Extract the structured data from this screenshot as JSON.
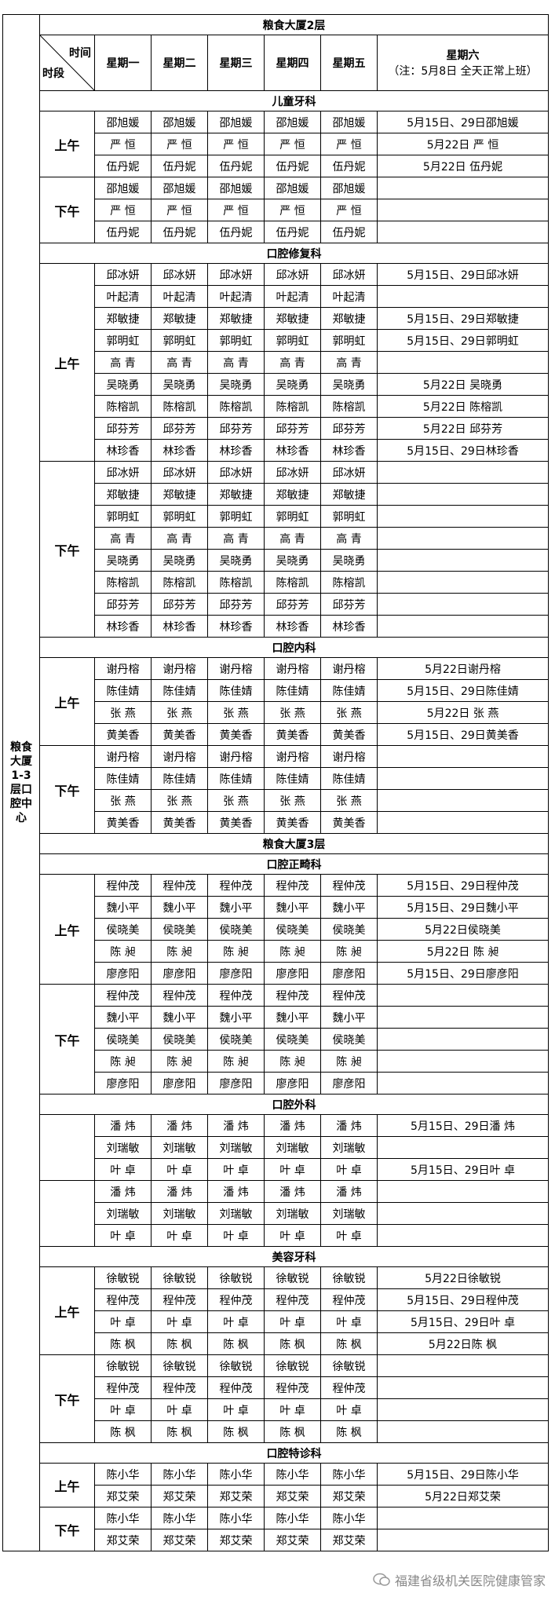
{
  "center": "粮食大厦1-3层口腔中心",
  "header": {
    "time": "时间",
    "period": "时段",
    "weekdays": [
      "星期一",
      "星期二",
      "星期三",
      "星期四",
      "星期五"
    ],
    "saturday": "星期六",
    "note": "（注：5月8日 全天正常上班）"
  },
  "blocks": [
    {
      "building": "粮食大厦2层"
    },
    {
      "department": "儿童牙科",
      "periods": [
        {
          "label": "上午",
          "rows": [
            {
              "doctor": "邵旭媛",
              "saturday": "5月15日、29日邵旭媛"
            },
            {
              "doctor": "严 恒",
              "saturday": "5月22日 严 恒"
            },
            {
              "doctor": "伍丹妮",
              "saturday": "5月22日 伍丹妮"
            }
          ]
        },
        {
          "label": "下午",
          "rows": [
            {
              "doctor": "邵旭媛"
            },
            {
              "doctor": "严 恒"
            },
            {
              "doctor": "伍丹妮"
            }
          ]
        }
      ]
    },
    {
      "department": "口腔修复科",
      "periods": [
        {
          "label": "上午",
          "rows": [
            {
              "doctor": "邱冰妍",
              "saturday": "5月15日、29日邱冰妍"
            },
            {
              "doctor": "叶起清"
            },
            {
              "doctor": "郑敏捷",
              "saturday": "5月15日、29日郑敏捷"
            },
            {
              "doctor": "郭明虹",
              "saturday": "5月15日、29日郭明虹"
            },
            {
              "doctor": "高 青"
            },
            {
              "doctor": "吴晓勇",
              "saturday": "5月22日 吴晓勇"
            },
            {
              "doctor": "陈榕凯",
              "saturday": "5月22日 陈榕凯"
            },
            {
              "doctor": "邱芬芳",
              "saturday": "5月22日 邱芬芳"
            },
            {
              "doctor": "林珍香",
              "saturday": "5月15日、29日林珍香"
            }
          ]
        },
        {
          "label": "下午",
          "rows": [
            {
              "doctor": "邱冰妍"
            },
            {
              "doctor": "郑敏捷"
            },
            {
              "doctor": "郭明虹"
            },
            {
              "doctor": "高 青"
            },
            {
              "doctor": "吴晓勇"
            },
            {
              "doctor": "陈榕凯"
            },
            {
              "doctor": "邱芬芳"
            },
            {
              "doctor": "林珍香"
            }
          ]
        }
      ]
    },
    {
      "department": "口腔内科",
      "periods": [
        {
          "label": "上午",
          "rows": [
            {
              "doctor": "谢丹榕",
              "saturday": "5月22日谢丹榕"
            },
            {
              "doctor": "陈佳婧",
              "saturday": "5月15日、29日陈佳婧"
            },
            {
              "doctor": "张 燕",
              "saturday": "5月22日 张 燕"
            },
            {
              "doctor": "黄美香",
              "saturday": "5月15日、29日黄美香"
            }
          ]
        },
        {
          "label": "下午",
          "rows": [
            {
              "doctor": "谢丹榕"
            },
            {
              "doctor": "陈佳婧"
            },
            {
              "doctor": "张 燕"
            },
            {
              "doctor": "黄美香"
            }
          ]
        }
      ]
    },
    {
      "building": "粮食大厦3层"
    },
    {
      "department": "口腔正畸科",
      "periods": [
        {
          "label": "上午",
          "rows": [
            {
              "doctor": "程仲茂",
              "saturday": "5月15日、29日程仲茂"
            },
            {
              "doctor": "魏小平",
              "saturday": "5月15日、29日魏小平"
            },
            {
              "doctor": "侯晓美",
              "saturday": "5月22日侯晓美"
            },
            {
              "doctor": "陈 昶",
              "saturday": "5月22日 陈 昶"
            },
            {
              "doctor": "廖彦阳",
              "saturday": "5月15日、29日廖彦阳"
            }
          ]
        },
        {
          "label": "下午",
          "rows": [
            {
              "doctor": "程仲茂"
            },
            {
              "doctor": "魏小平"
            },
            {
              "doctor": "侯晓美"
            },
            {
              "doctor": "陈 昶"
            },
            {
              "doctor": "廖彦阳"
            }
          ]
        }
      ]
    },
    {
      "department": "口腔外科",
      "periods": [
        {
          "label": null,
          "rows": [
            {
              "doctor": "潘 炜",
              "saturday": "5月15日、29日潘 炜"
            },
            {
              "doctor": "刘瑞敏"
            },
            {
              "doctor": "叶 卓",
              "saturday": "5月15日、29日叶 卓"
            }
          ]
        },
        {
          "label": null,
          "rows": [
            {
              "doctor": "潘 炜"
            },
            {
              "doctor": "刘瑞敏"
            },
            {
              "doctor": "叶 卓"
            }
          ]
        }
      ]
    },
    {
      "department": "美容牙科",
      "periods": [
        {
          "label": "上午",
          "rows": [
            {
              "doctor": "徐敏锐",
              "saturday": "5月22日徐敏锐"
            },
            {
              "doctor": "程仲茂",
              "saturday": "5月15日、29日程仲茂"
            },
            {
              "doctor": "叶 卓",
              "saturday": "5月15日、29日叶 卓"
            },
            {
              "doctor": "陈 枫",
              "saturday": "5月22日陈 枫"
            }
          ]
        },
        {
          "label": "下午",
          "rows": [
            {
              "doctor": "徐敏锐"
            },
            {
              "doctor": "程仲茂"
            },
            {
              "doctor": "叶 卓"
            },
            {
              "doctor": "陈 枫"
            }
          ]
        }
      ]
    },
    {
      "department": "口腔特诊科",
      "periods": [
        {
          "label": "上午",
          "rows": [
            {
              "doctor": "陈小华",
              "saturday": "5月15日、29日陈小华"
            },
            {
              "doctor": "郑艾荣",
              "saturday": "5月22日郑艾荣"
            }
          ]
        },
        {
          "label": "下午",
          "rows": [
            {
              "doctor": "陈小华"
            },
            {
              "doctor": "郑艾荣"
            }
          ]
        }
      ]
    }
  ],
  "watermark": "福建省级机关医院健康管家"
}
